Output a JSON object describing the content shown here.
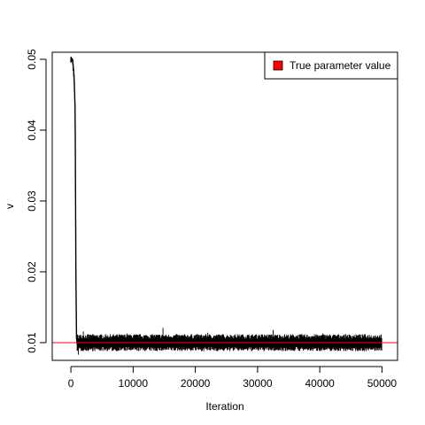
{
  "chart_data": {
    "type": "line",
    "title": "",
    "xlabel": "Iteration",
    "ylabel": "v",
    "xlim": [
      -3000,
      52500
    ],
    "ylim": [
      0.0075,
      0.051
    ],
    "x_ticks": [
      0,
      10000,
      20000,
      30000,
      40000,
      50000
    ],
    "x_tick_labels": [
      "0",
      "10000",
      "20000",
      "30000",
      "40000",
      "50000"
    ],
    "y_ticks": [
      0.01,
      0.02,
      0.03,
      0.04,
      0.05
    ],
    "y_tick_labels": [
      "0.01",
      "0.02",
      "0.03",
      "0.04",
      "0.05"
    ],
    "grid": false,
    "legend": {
      "placement": "top-right",
      "entries": [
        {
          "label": "True parameter value",
          "color": "#ff0000",
          "marker": "filled-square"
        }
      ]
    },
    "series": [
      {
        "color": "#000000",
        "description_points": [
          {
            "x": 0,
            "y": 0.05
          },
          {
            "x": 300,
            "y": 0.0497
          },
          {
            "x": 500,
            "y": 0.0475
          },
          {
            "x": 650,
            "y": 0.044
          },
          {
            "x": 700,
            "y": 0.0395
          },
          {
            "x": 750,
            "y": 0.03
          },
          {
            "x": 800,
            "y": 0.02
          },
          {
            "x": 900,
            "y": 0.011
          },
          {
            "x": 1000,
            "y": 0.01
          },
          {
            "x": 50000,
            "y": 0.01
          }
        ],
        "stationary_mean": 0.01,
        "stationary_range": [
          0.0088,
          0.0112
        ],
        "max_spike": {
          "x": 14800,
          "y": 0.0121
        }
      }
    ],
    "reference_lines": [
      {
        "axis": "y",
        "value": 0.01,
        "color": "#ff0000",
        "label": "True parameter value"
      }
    ]
  }
}
